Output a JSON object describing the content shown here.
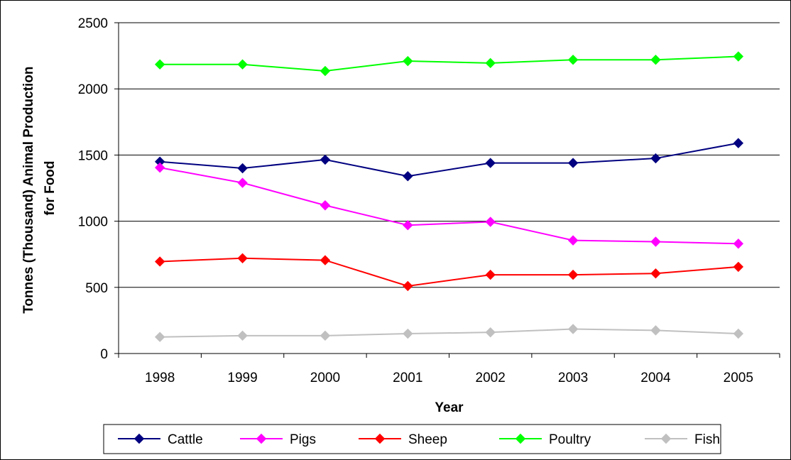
{
  "chart_data": {
    "type": "line",
    "title": "",
    "xlabel": "Year",
    "ylabel": "Tonnes (Thousand) Animal Production for Food",
    "ylabel_lines": [
      "Tonnes (Thousand) Animal Production",
      "for Food"
    ],
    "categories": [
      "1998",
      "1999",
      "2000",
      "2001",
      "2002",
      "2003",
      "2004",
      "2005"
    ],
    "ylim": [
      0,
      2500
    ],
    "yticks": [
      0,
      500,
      1000,
      1500,
      2000,
      2500
    ],
    "grid": true,
    "legend_position": "bottom",
    "series": [
      {
        "name": "Cattle",
        "color": "#000080",
        "values": [
          1450,
          1400,
          1465,
          1340,
          1440,
          1440,
          1475,
          1590
        ]
      },
      {
        "name": "Pigs",
        "color": "#FF00FF",
        "values": [
          1405,
          1290,
          1120,
          970,
          995,
          855,
          845,
          830
        ]
      },
      {
        "name": "Sheep",
        "color": "#FF0000",
        "values": [
          695,
          720,
          705,
          510,
          595,
          595,
          605,
          655
        ]
      },
      {
        "name": "Poultry",
        "color": "#00FF00",
        "values": [
          2185,
          2185,
          2135,
          2210,
          2195,
          2220,
          2220,
          2245
        ]
      },
      {
        "name": "Fish",
        "color": "#C0C0C0",
        "values": [
          125,
          135,
          135,
          150,
          160,
          185,
          175,
          150
        ]
      }
    ]
  }
}
